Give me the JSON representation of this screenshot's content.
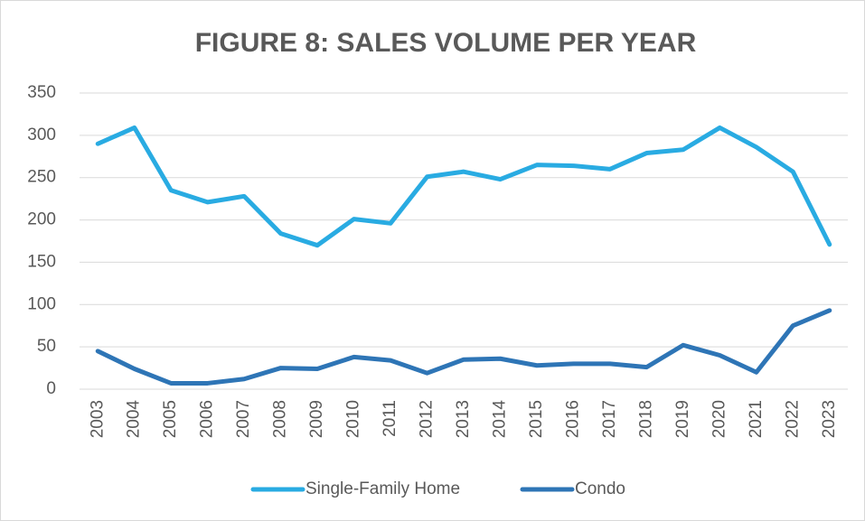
{
  "chart_data": {
    "type": "line",
    "title": "FIGURE 8: SALES VOLUME PER YEAR",
    "categories": [
      "2003",
      "2004",
      "2005",
      "2006",
      "2007",
      "2008",
      "2009",
      "2010",
      "2011",
      "2012",
      "2013",
      "2014",
      "2015",
      "2016",
      "2017",
      "2018",
      "2019",
      "2020",
      "2021",
      "2022",
      "2023"
    ],
    "series": [
      {
        "name": "Single-Family Home",
        "color": "#29abe2",
        "values": [
          290,
          309,
          235,
          221,
          228,
          184,
          170,
          201,
          196,
          251,
          257,
          248,
          265,
          264,
          260,
          279,
          283,
          309,
          286,
          257,
          171
        ]
      },
      {
        "name": "Condo",
        "color": "#2e75b6",
        "values": [
          45,
          24,
          7,
          7,
          12,
          25,
          24,
          38,
          34,
          19,
          35,
          36,
          28,
          30,
          30,
          26,
          52,
          40,
          20,
          75,
          93
        ]
      }
    ],
    "ylim": [
      0,
      350
    ],
    "yticks": [
      0,
      50,
      100,
      150,
      200,
      250,
      300,
      350
    ],
    "grid": true,
    "legend": "bottom"
  }
}
